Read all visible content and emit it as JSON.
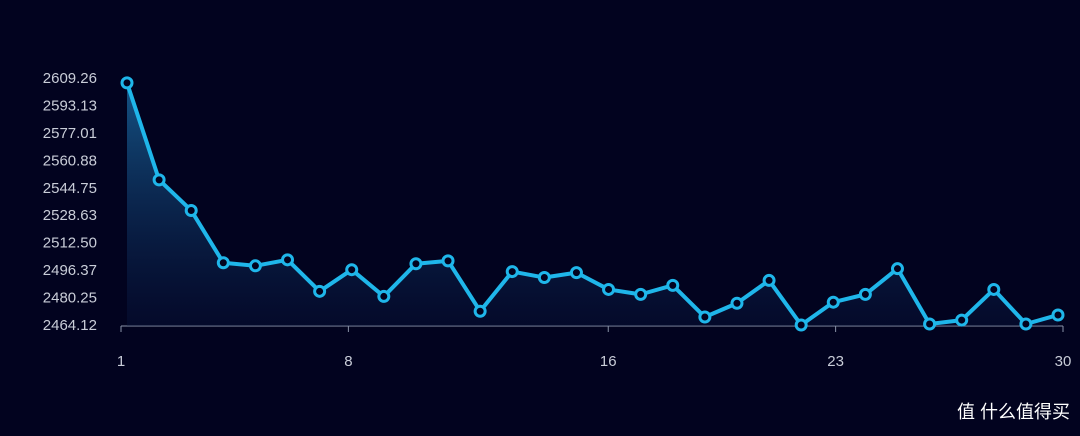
{
  "chart_data": {
    "type": "line",
    "x": [
      1,
      2,
      3,
      4,
      5,
      6,
      7,
      8,
      9,
      10,
      11,
      12,
      13,
      14,
      15,
      16,
      17,
      18,
      19,
      20,
      21,
      22,
      23,
      24,
      25,
      26,
      27,
      28,
      29,
      30
    ],
    "series": [
      {
        "color": "#1fb6ea",
        "values": [
          2607.0,
          2550.0,
          2532.0,
          2501.3,
          2499.5,
          2503.0,
          2484.5,
          2497.2,
          2481.5,
          2500.7,
          2502.4,
          2472.8,
          2496.1,
          2492.6,
          2495.5,
          2485.6,
          2482.7,
          2488.0,
          2469.4,
          2477.5,
          2490.9,
          2464.7,
          2478.1,
          2482.7,
          2497.8,
          2465.3,
          2467.6,
          2485.6,
          2465.3,
          2470.6
        ]
      }
    ],
    "xlim": [
      1,
      30
    ],
    "xticks": [
      1,
      8,
      16,
      23,
      30
    ],
    "ylim": [
      2464.12,
      2609.26
    ],
    "yticks": [
      2464.12,
      2480.25,
      2496.37,
      {
        "value": 2512.5,
        "label": "2512.50"
      },
      2528.63,
      2544.75,
      2560.88,
      2577.01,
      2593.13,
      2609.26
    ],
    "watermark": "值 什么值得买"
  }
}
